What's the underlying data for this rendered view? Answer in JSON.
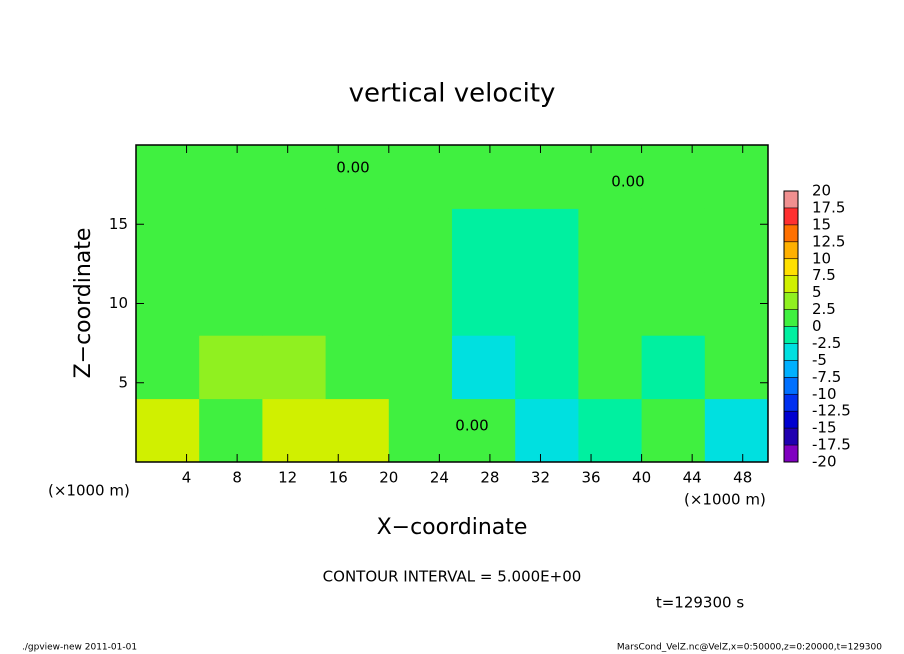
{
  "chart_data": {
    "type": "heatmap",
    "title": "vertical velocity",
    "x_label": "X−coordinate",
    "y_label": "Z−coordinate",
    "x_unit": "(×1000 m)",
    "y_unit": "(×1000 m)",
    "xlim": [
      0,
      50
    ],
    "ylim": [
      0,
      20
    ],
    "xticks": [
      4,
      8,
      12,
      16,
      20,
      24,
      28,
      32,
      36,
      40,
      44,
      48
    ],
    "yticks": [
      5,
      10,
      15
    ],
    "field": [
      [
        5,
        2,
        5,
        5,
        0,
        0,
        -5,
        -2,
        0,
        -5
      ],
      [
        2,
        3,
        3,
        1,
        0,
        -3,
        -2,
        0,
        -2,
        0
      ],
      [
        1,
        1,
        1,
        0,
        0,
        -2,
        -2,
        0,
        0,
        0
      ],
      [
        1,
        1,
        0,
        0,
        0,
        -1,
        -1,
        0,
        0,
        0
      ],
      [
        0,
        0,
        0,
        0,
        0,
        0,
        0,
        0,
        0,
        0
      ]
    ],
    "colorbar": {
      "ticks": [
        -20,
        -17.5,
        -15,
        -12.5,
        -10,
        -7.5,
        -5,
        -2.5,
        0,
        2.5,
        5,
        7.5,
        10,
        12.5,
        15,
        17.5,
        20
      ],
      "colors": [
        "#8000c0",
        "#2000b0",
        "#0000d0",
        "#0030f0",
        "#0070ff",
        "#00b0ff",
        "#00e0e0",
        "#00f0a0",
        "#40f040",
        "#90f020",
        "#d0f000",
        "#ffe000",
        "#ffb000",
        "#ff7000",
        "#ff3030",
        "#f09090"
      ]
    },
    "annotations": [
      "0.00",
      "0.00",
      "0.00"
    ],
    "contour_interval": "CONTOUR INTERVAL = 5.000E+00",
    "time": "t=129300 s",
    "footer_left": "./gpview-new  2011-01-01",
    "footer_right": "MarsCond_VelZ.nc@VelZ,x=0:50000,z=0:20000,t=129300"
  }
}
